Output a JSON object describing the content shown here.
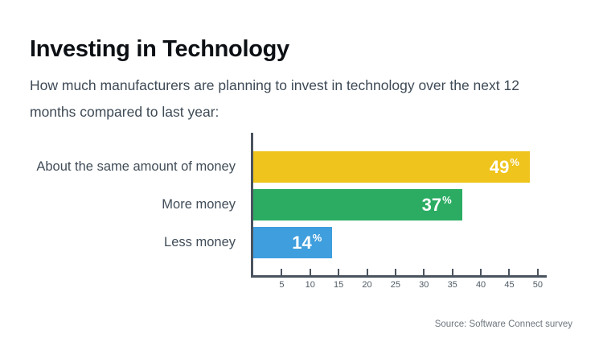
{
  "header": {
    "title": "Investing in Technology",
    "subtitle": "How much manufacturers are planning to invest in technology over the next 12 months compared to last year:"
  },
  "chart_data": {
    "type": "bar",
    "orientation": "horizontal",
    "title": "Investing in Technology",
    "categories": [
      "About the same amount of money",
      "More money",
      "Less money"
    ],
    "values": [
      49,
      37,
      14
    ],
    "unit": "%",
    "xlim": [
      0,
      52
    ],
    "ticks": [
      5,
      10,
      15,
      20,
      25,
      30,
      35,
      40,
      45,
      50
    ],
    "bar_colors": [
      "#efc41c",
      "#2bac62",
      "#3f9edd"
    ],
    "grid": false,
    "legend": false,
    "value_label_position": "inside-end",
    "value_label_color": "#ffffff",
    "axis_color": "#4a545f"
  },
  "footer": {
    "source": "Source: Software Connect survey"
  }
}
